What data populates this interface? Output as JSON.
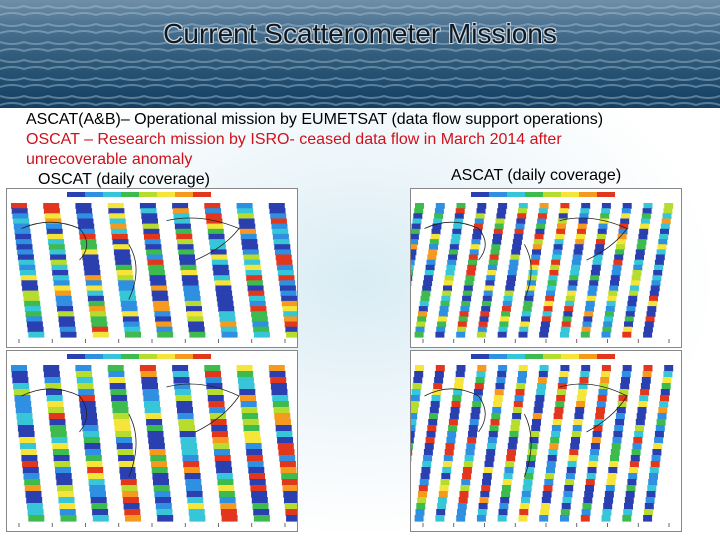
{
  "title": "Current Scatterometer Missions",
  "lines": {
    "ascat_mission": "ASCAT(A&B)– Operational mission by EUMETSAT (data flow support operations)",
    "oscat_mission_1": "OSCAT – Research mission by ISRO- ceased data flow in March 2014 after",
    "oscat_mission_2": "unrecoverable anomaly",
    "ascat_caption": "ASCAT (daily coverage)",
    "oscat_caption": "OSCAT (daily coverage)"
  },
  "colors": {
    "title": "#101820",
    "body_text": "#000000",
    "highlight_text": "#d0111b",
    "banner_sea": "#2f5978"
  },
  "maps": [
    {
      "label": "oscat-map-top",
      "kind": "oscat"
    },
    {
      "label": "oscat-map-bottom",
      "kind": "oscat"
    },
    {
      "label": "ascat-map-top",
      "kind": "ascat"
    },
    {
      "label": "ascat-map-bottom",
      "kind": "ascat"
    }
  ]
}
